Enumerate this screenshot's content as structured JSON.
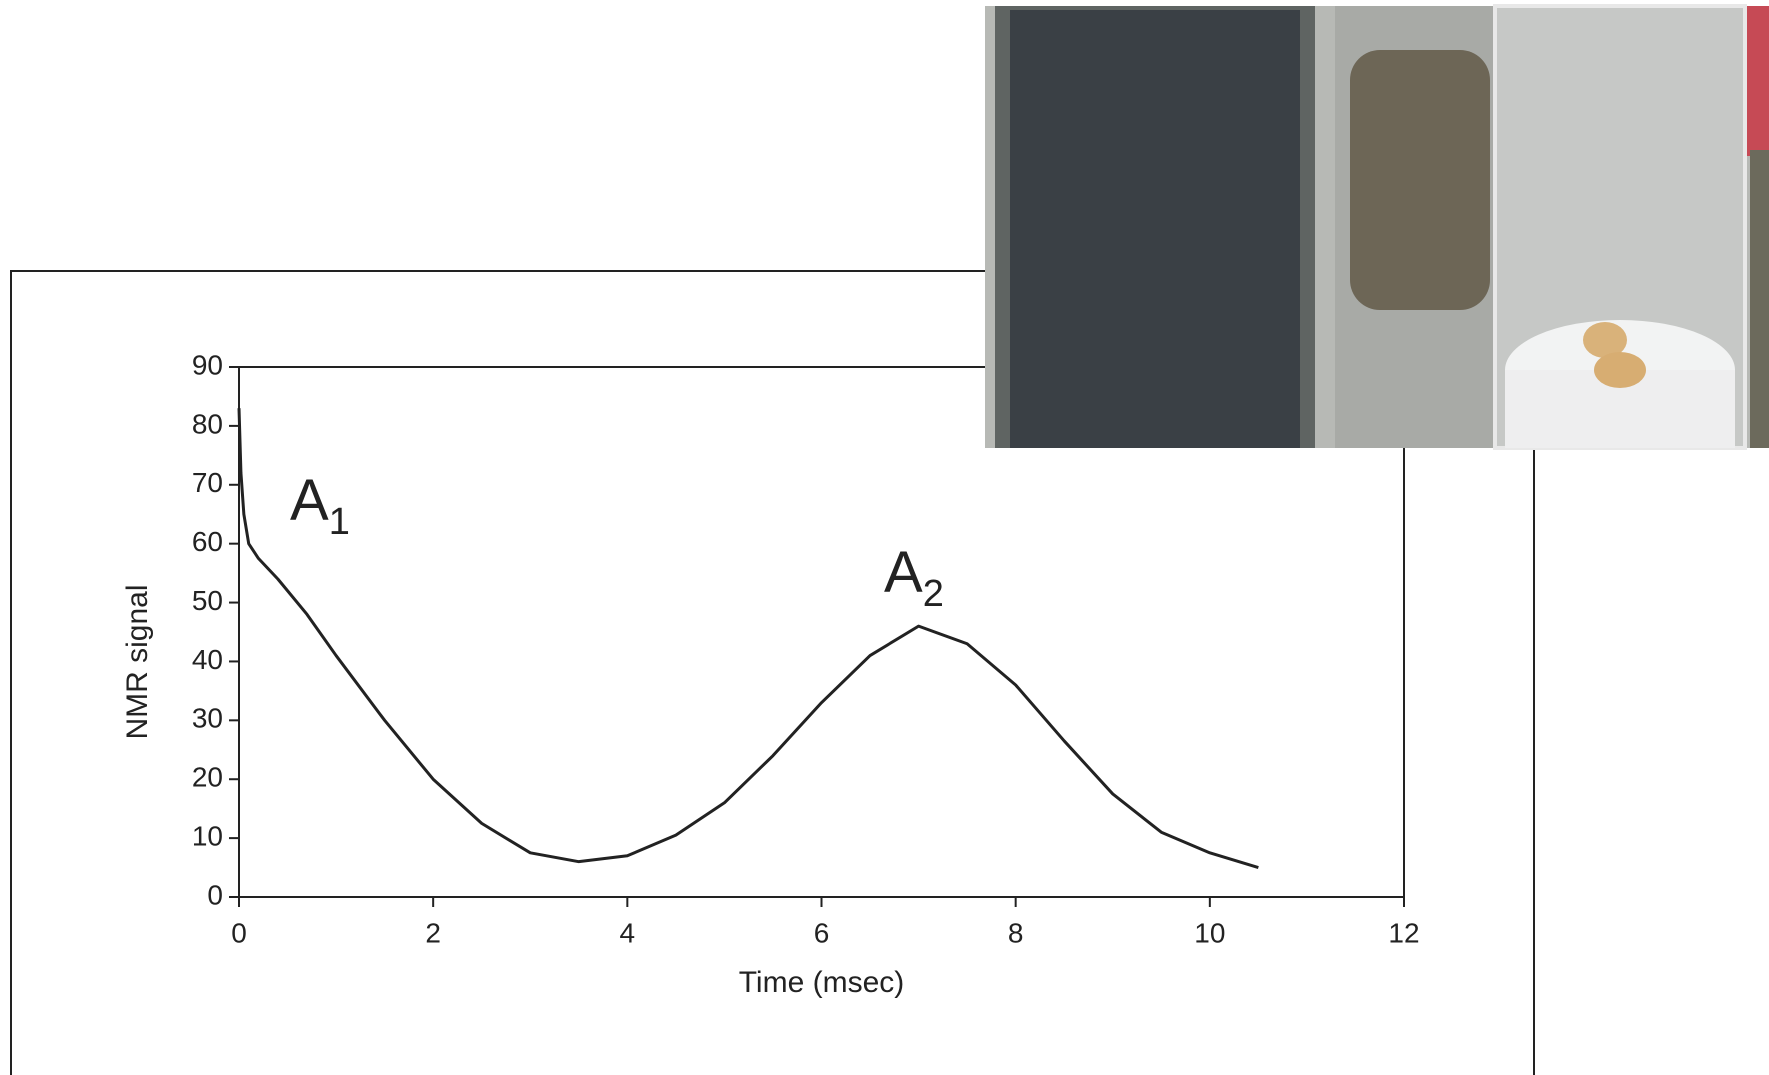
{
  "chart_data": {
    "type": "line",
    "x_label": "Time (msec)",
    "y_label": "NMR signal",
    "xlim": [
      0,
      12
    ],
    "xticks": [
      0,
      2,
      4,
      6,
      8,
      10,
      12
    ],
    "ylim": [
      0,
      90
    ],
    "yticks": [
      0,
      10,
      20,
      30,
      40,
      50,
      60,
      70,
      80,
      90
    ],
    "x": [
      0,
      0.02,
      0.05,
      0.1,
      0.2,
      0.4,
      0.7,
      1.0,
      1.5,
      2.0,
      2.5,
      3.0,
      3.5,
      4.0,
      4.5,
      5.0,
      5.5,
      6.0,
      6.5,
      7.0,
      7.5,
      8.0,
      8.5,
      9.0,
      9.5,
      10.0,
      10.5
    ],
    "series": [
      {
        "color": "#222222",
        "values": [
          83,
          72,
          65,
          60,
          57.5,
          54,
          48,
          41,
          30,
          20,
          12.5,
          7.5,
          6,
          7,
          10.5,
          16,
          24,
          33,
          41,
          46,
          43,
          36,
          26.5,
          17.5,
          11,
          7.5,
          5
        ]
      }
    ],
    "annotations": [
      {
        "text": "A",
        "subscript": "1"
      },
      {
        "text": "A",
        "subscript": "2"
      }
    ]
  }
}
